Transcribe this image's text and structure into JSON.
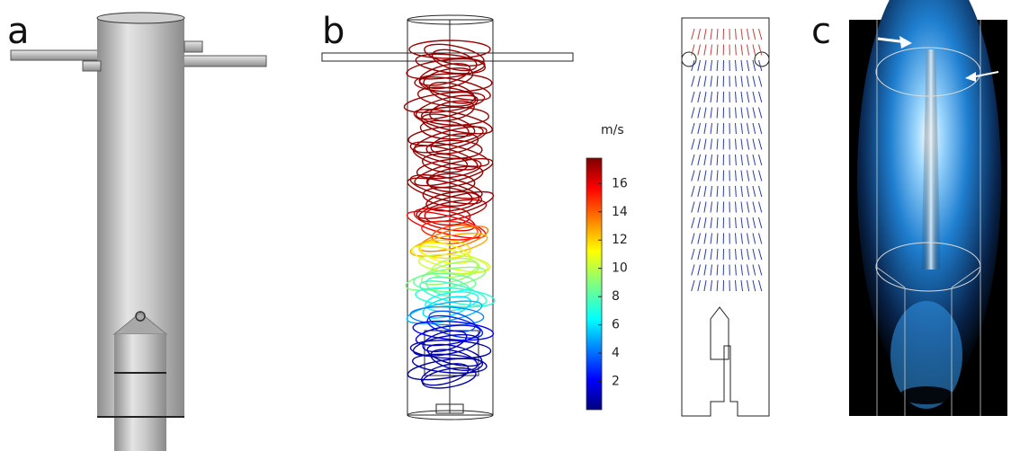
{
  "panels": [
    {
      "label": "a"
    },
    {
      "label": "b"
    },
    {
      "label": "c"
    }
  ],
  "colorbar": {
    "unit": "m/s",
    "range": [
      0,
      17.8
    ],
    "ticks": [
      2,
      4,
      6,
      8,
      10,
      12,
      14,
      16
    ]
  }
}
